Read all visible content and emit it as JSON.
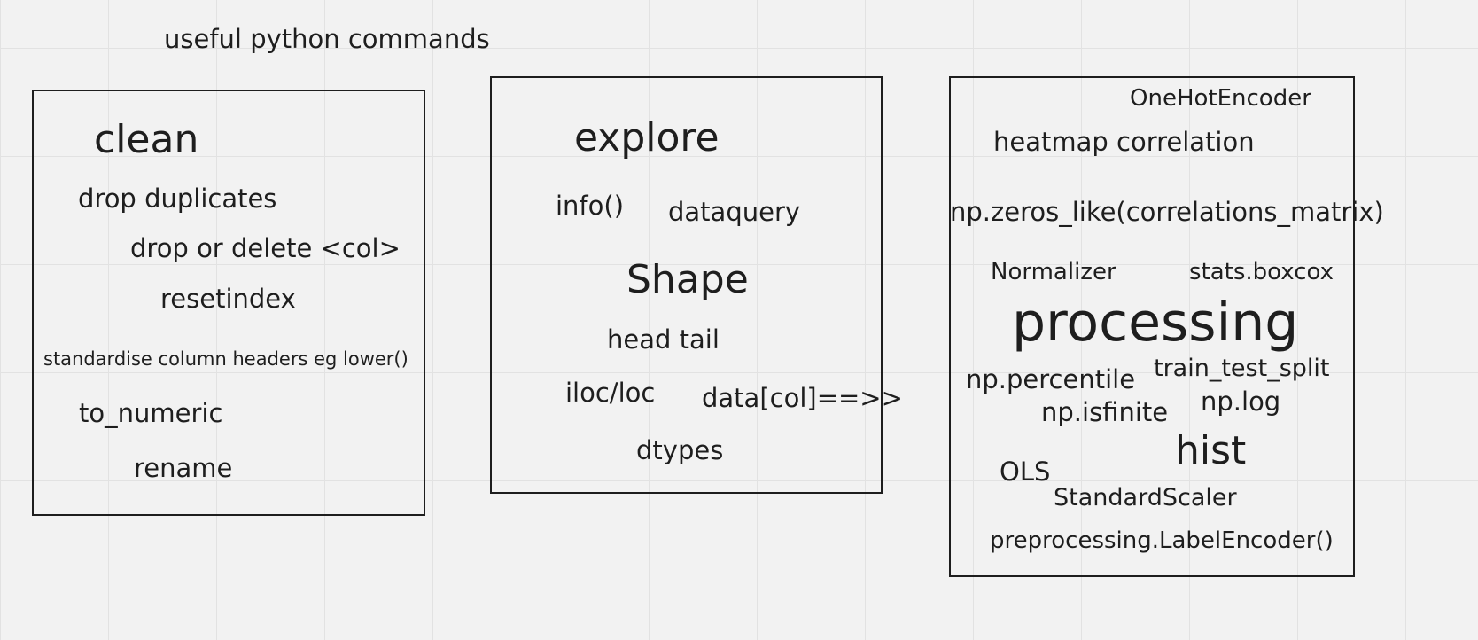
{
  "board": {
    "title": "useful python commands",
    "clean": {
      "heading": "clean",
      "items": [
        "drop duplicates",
        "drop or delete <col>",
        "resetindex",
        "standardise column headers eg lower()",
        "to_numeric",
        "rename"
      ]
    },
    "explore": {
      "heading": "explore",
      "items": [
        "info()",
        "dataquery",
        "Shape",
        "head tail",
        "iloc/loc",
        "data[col]==>>",
        "dtypes"
      ]
    },
    "processing": {
      "heading": "processing",
      "items": [
        "OneHotEncoder",
        "heatmap correlation",
        "np.zeros_like(correlations_matrix)",
        "Normalizer",
        "stats.boxcox",
        "np.percentile",
        "train_test_split",
        "np.isfinite",
        "np.log",
        "hist",
        "OLS",
        "StandardScaler",
        "preprocessing.LabelEncoder()"
      ]
    }
  }
}
